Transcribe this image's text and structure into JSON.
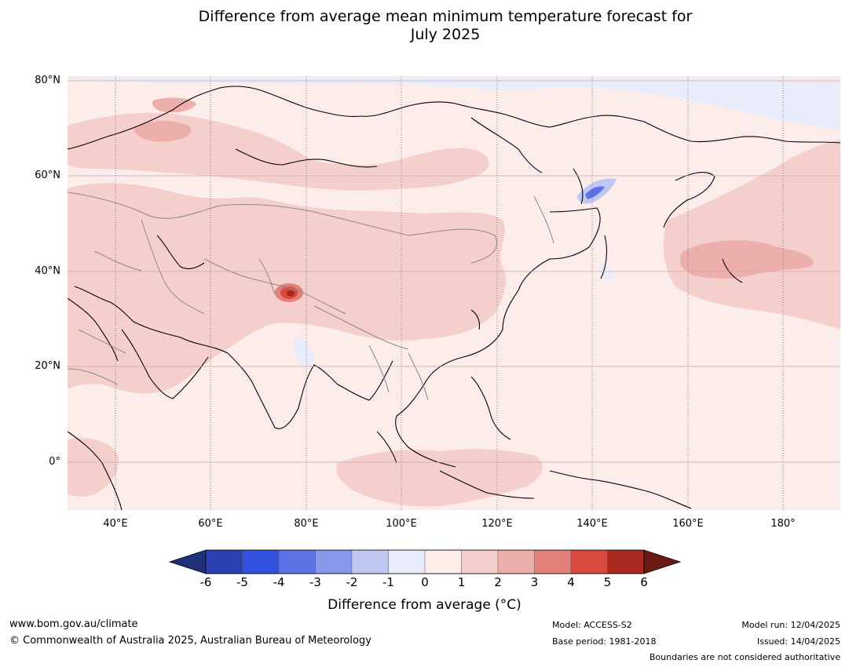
{
  "title_line1": "Difference from average mean minimum temperature forecast for",
  "title_line2": "July 2025",
  "lat_labels": [
    "80°N",
    "60°N",
    "40°N",
    "20°N",
    "0°"
  ],
  "lon_labels": [
    "40°E",
    "60°E",
    "80°E",
    "100°E",
    "120°E",
    "140°E",
    "160°E",
    "180°"
  ],
  "colorbar": {
    "title": "Difference from average (°C)",
    "ticks": [
      "-6",
      "-5",
      "-4",
      "-3",
      "-2",
      "-1",
      "0",
      "1",
      "2",
      "3",
      "4",
      "5",
      "6"
    ],
    "colors": [
      "#1f2f7a",
      "#2a3fb0",
      "#3050dd",
      "#5c74e6",
      "#8797ea",
      "#bfc8f3",
      "#e8ecfb",
      "#fcecea",
      "#f4cfcc",
      "#edafab",
      "#e4807a",
      "#d84a40",
      "#a8291f",
      "#6e1a14"
    ]
  },
  "footer": {
    "url": "www.bom.gov.au/climate",
    "copyright": "© Commonwealth of Australia 2025, Australian Bureau of Meteorology",
    "model": "Model: ACCESS-S2",
    "base_period": "Base period: 1981-2018",
    "model_run": "Model run: 12/04/2025",
    "issued": "Issued: 14/04/2025",
    "disclaimer": "Boundaries are not considered authoritative"
  }
}
